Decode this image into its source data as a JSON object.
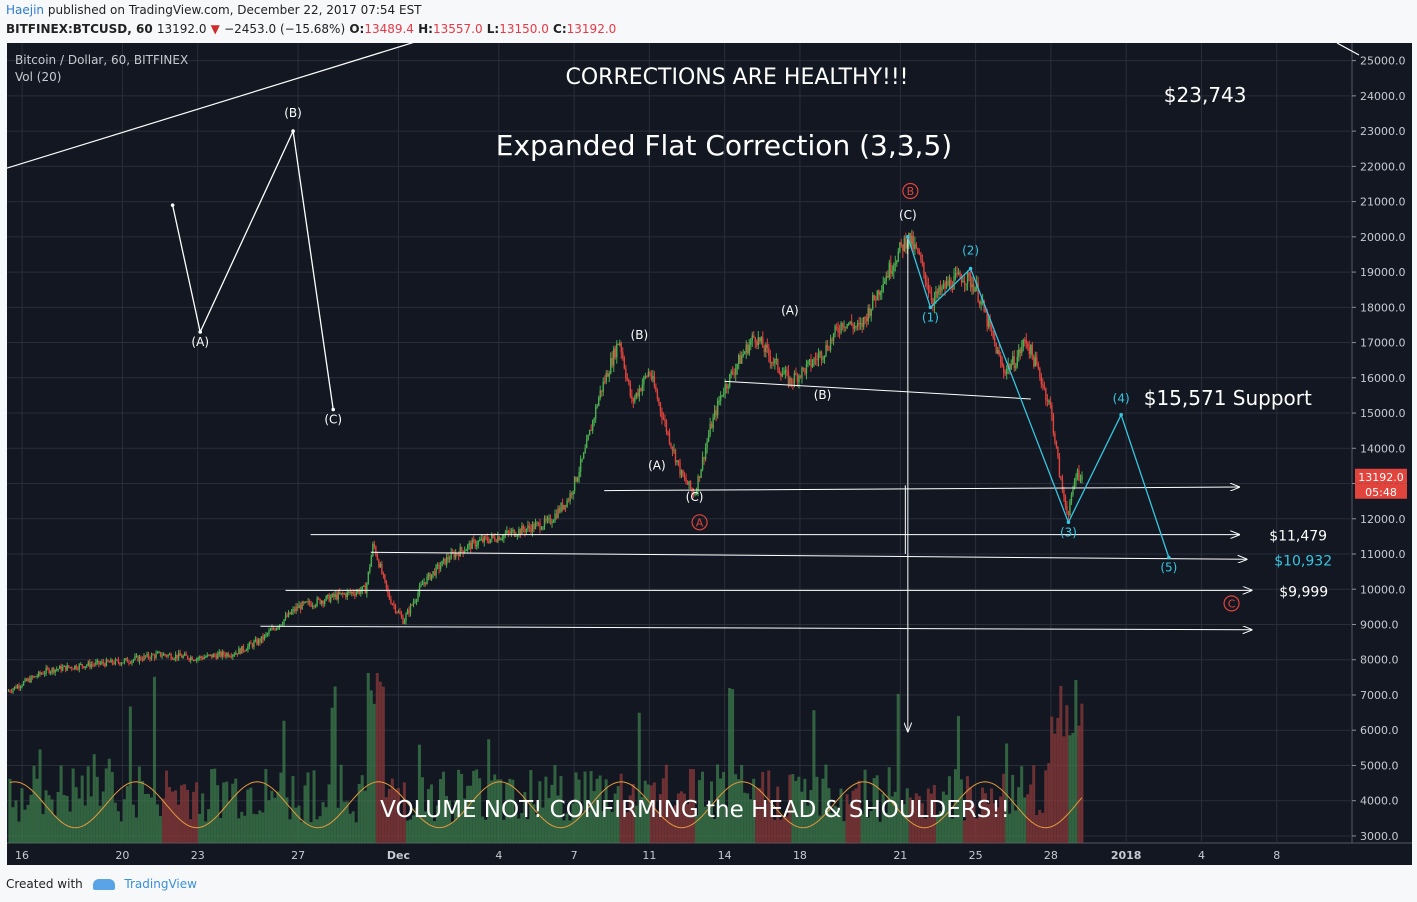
{
  "header": {
    "author": "Haejin",
    "published": "published on TradingView.com, December 22, 2017 07:54 EST",
    "symbol": "BITFINEX:BTCUSD, 60",
    "last": "13192.0",
    "change": "−2453.0 (−15.68%)",
    "o_label": "O:",
    "o": "13489.4",
    "h_label": "H:",
    "h": "13557.0",
    "l_label": "L:",
    "l": "13150.0",
    "c_label": "C:",
    "c": "13192.0"
  },
  "footer": {
    "created": "Created with",
    "brand": "TradingView"
  },
  "colors": {
    "bg": "#131722",
    "grid": "#2a2e39",
    "up": "#4caf50",
    "down": "#e0443c",
    "wave": "#ffffff",
    "cyan": "#36c6e0",
    "red_marker": "#e0443c",
    "price_tag": "#e0443c"
  },
  "chart_data": {
    "type": "candlestick",
    "legend": "Bitcoin / Dollar, 60, BITFINEX",
    "indicator": "Vol (20)",
    "ylim": [
      2800,
      25500
    ],
    "y_ticks": [
      3000,
      4000,
      5000,
      6000,
      7000,
      8000,
      9000,
      10000,
      11000,
      12000,
      13000,
      14000,
      15000,
      16000,
      17000,
      18000,
      19000,
      20000,
      21000,
      22000,
      23000,
      24000,
      25000
    ],
    "y_tick_labels": [
      "3000.0",
      "4000.0",
      "5000.0",
      "6000.0",
      "7000.0",
      "8000.0",
      "9000.0",
      "10000.0",
      "11000.0",
      "12000.0",
      "13000.0",
      "14000.0",
      "15000.0",
      "16000.0",
      "17000.0",
      "18000.0",
      "19000.0",
      "20000.0",
      "21000.0",
      "22000.0",
      "23000.0",
      "24000.0",
      "25000.0"
    ],
    "x_ticks": [
      16,
      20,
      23,
      27,
      31,
      35,
      38,
      41,
      44,
      47,
      51,
      54,
      57,
      60,
      63,
      66
    ],
    "x_tick_labels": [
      "16",
      "20",
      "23",
      "27",
      "Dec",
      "4",
      "7",
      "11",
      "14",
      "18",
      "21",
      "25",
      "28",
      "2018",
      "4",
      "8"
    ],
    "xlim": [
      15.4,
      69
    ],
    "price_path": [
      [
        15.4,
        7100
      ],
      [
        17,
        7700
      ],
      [
        18.5,
        7850
      ],
      [
        20,
        7950
      ],
      [
        21.5,
        8150
      ],
      [
        23,
        8050
      ],
      [
        24.5,
        8200
      ],
      [
        25.5,
        8550
      ],
      [
        27,
        9500
      ],
      [
        28.5,
        9800
      ],
      [
        29.7,
        10000
      ],
      [
        30,
        11300
      ],
      [
        30.6,
        9800
      ],
      [
        31.2,
        9100
      ],
      [
        32,
        10200
      ],
      [
        33,
        10900
      ],
      [
        34,
        11300
      ],
      [
        35,
        11500
      ],
      [
        36,
        11700
      ],
      [
        37,
        11900
      ],
      [
        37.8,
        12600
      ],
      [
        38.4,
        13800
      ],
      [
        39,
        15500
      ],
      [
        39.8,
        17100
      ],
      [
        40.3,
        15300
      ],
      [
        41,
        16200
      ],
      [
        41.7,
        14500
      ],
      [
        42.3,
        13200
      ],
      [
        42.8,
        12700
      ],
      [
        43.4,
        14500
      ],
      [
        43.9,
        15600
      ],
      [
        44.5,
        16400
      ],
      [
        45.2,
        17200
      ],
      [
        45.9,
        16500
      ],
      [
        46.6,
        15900
      ],
      [
        47.3,
        16300
      ],
      [
        48,
        16800
      ],
      [
        48.7,
        17600
      ],
      [
        49.4,
        17400
      ],
      [
        50.2,
        18600
      ],
      [
        50.8,
        19400
      ],
      [
        51.3,
        20000
      ],
      [
        51.7,
        19500
      ],
      [
        52.3,
        18200
      ],
      [
        52.8,
        18600
      ],
      [
        53.5,
        18900
      ],
      [
        54,
        18600
      ],
      [
        54.6,
        17300
      ],
      [
        55.1,
        16200
      ],
      [
        55.6,
        16500
      ],
      [
        56,
        17100
      ],
      [
        56.6,
        16000
      ],
      [
        57,
        15100
      ],
      [
        57.4,
        13000
      ],
      [
        57.7,
        12100
      ],
      [
        58,
        13300
      ],
      [
        58.3,
        13192
      ]
    ],
    "volume_ylim": [
      0,
      45000
    ],
    "price_tag": "13192.0",
    "countdown": "05:48",
    "support_lines": [
      {
        "x1": 39.2,
        "y1": 12800,
        "x2": 64.5,
        "y2": 12900
      },
      {
        "x1": 27.5,
        "y1": 11550,
        "x2": 64.5,
        "y2": 11550
      },
      {
        "x1": 29.9,
        "y1": 11050,
        "x2": 64.8,
        "y2": 10850
      },
      {
        "x1": 26.5,
        "y1": 9970,
        "x2": 65,
        "y2": 9970
      },
      {
        "x1": 25.5,
        "y1": 8950,
        "x2": 65,
        "y2": 8850
      }
    ],
    "neckline": {
      "x1": 44,
      "y1": 15900,
      "x2": 56.2,
      "y2": 15400
    },
    "trend_line": {
      "x1": 15.4,
      "y1": 21950,
      "x2": 33.8,
      "y2": 26000
    },
    "example_wave": [
      [
        22,
        20900
      ],
      [
        23.1,
        17300
      ],
      [
        26.8,
        23000
      ],
      [
        28.4,
        15100
      ]
    ],
    "example_labels": [
      {
        "text": "(A)",
        "x": 23.1,
        "y": 16900
      },
      {
        "text": "(B)",
        "x": 26.8,
        "y": 23400
      },
      {
        "text": "(C)",
        "x": 28.4,
        "y": 14700
      }
    ],
    "wave_labels": [
      {
        "text": "(B)",
        "x": 40.6,
        "y": 17100
      },
      {
        "text": "(A)",
        "x": 41.3,
        "y": 13400
      },
      {
        "text": "(C)",
        "x": 42.8,
        "y": 12500
      },
      {
        "text": "(A)",
        "x": 46.6,
        "y": 17800
      },
      {
        "text": "(B)",
        "x": 47.9,
        "y": 15400
      },
      {
        "text": "(C)",
        "x": 51.3,
        "y": 20500
      }
    ],
    "red_markers": [
      {
        "text": "A",
        "x": 43,
        "y": 11900
      },
      {
        "text": "B",
        "x": 51.4,
        "y": 21300
      },
      {
        "text": "C",
        "x": 64.2,
        "y": 9600
      }
    ],
    "impulse_path": [
      [
        51.3,
        20000
      ],
      [
        52.2,
        18000
      ],
      [
        53.8,
        19100
      ],
      [
        57.7,
        11900
      ],
      [
        59.8,
        14950
      ],
      [
        61.7,
        10900
      ]
    ],
    "impulse_labels": [
      {
        "text": "(1)",
        "x": 52.2,
        "y": 17600
      },
      {
        "text": "(2)",
        "x": 53.8,
        "y": 19500
      },
      {
        "text": "(3)",
        "x": 57.7,
        "y": 11500
      },
      {
        "text": "(4)",
        "x": 59.8,
        "y": 15300
      },
      {
        "text": "(5)",
        "x": 61.7,
        "y": 10500
      }
    ],
    "head_arrow": {
      "x": 51.3,
      "y1": 20000,
      "y2": 5970
    },
    "head_arrow2": {
      "x": 51.2,
      "y1": 12950,
      "y2": 11000
    },
    "price_labels": [
      {
        "text": "$23,743",
        "x": 61.5,
        "y": 24000,
        "size": 20,
        "color": "#ffffff"
      },
      {
        "text": "$15,571 Support",
        "x": 60.7,
        "y": 15400,
        "size": 20,
        "color": "#ffffff"
      },
      {
        "text": "$11,479",
        "x": 65.7,
        "y": 11550,
        "size": 14,
        "color": "#ffffff"
      },
      {
        "text": "$10,932",
        "x": 65.9,
        "y": 10850,
        "size": 14,
        "color": "#36c6e0"
      },
      {
        "text": "$9,999",
        "x": 66.1,
        "y": 9970,
        "size": 14,
        "color": "#ffffff"
      }
    ],
    "title": "CORRECTIONS ARE HEALTHY!!!",
    "subtitle": "Expanded Flat Correction (3,3,5)",
    "volume_note": "VOLUME NOT! CONFIRMING the HEAD & SHOULDERS!!"
  }
}
